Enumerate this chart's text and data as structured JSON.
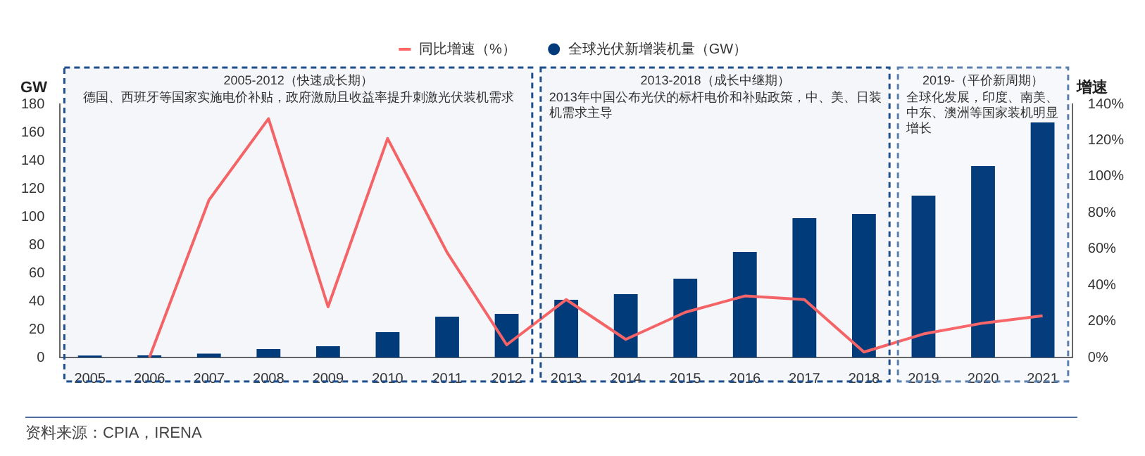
{
  "chart_data": {
    "type": "bar",
    "categories": [
      "2005",
      "2006",
      "2007",
      "2008",
      "2009",
      "2010",
      "2011",
      "2012",
      "2013",
      "2014",
      "2015",
      "2016",
      "2017",
      "2018",
      "2019",
      "2020",
      "2021"
    ],
    "series": [
      {
        "name": "全球光伏新增装机量（GW）",
        "color": "#003a7a",
        "values": [
          1.4,
          1.5,
          2.7,
          6,
          8,
          18,
          29,
          31,
          41,
          45,
          56,
          75,
          99,
          102,
          115,
          136,
          167
        ]
      },
      {
        "name": "同比增速（%）",
        "type": "line",
        "axis": "y2",
        "color": "#ff6666",
        "values": [
          null,
          0,
          87,
          132,
          28,
          121,
          58,
          7,
          32,
          10,
          25,
          34,
          32,
          3,
          13,
          19,
          23
        ]
      }
    ],
    "ylabel": "GW",
    "y2label": "增速",
    "ylim": [
      0,
      180
    ],
    "yticks": [
      0,
      20,
      40,
      60,
      80,
      100,
      120,
      140,
      160,
      180
    ],
    "y2lim": [
      0,
      140
    ],
    "y2ticks": [
      {
        "value": 0,
        "label": "0%"
      },
      {
        "value": 20,
        "label": "20%"
      },
      {
        "value": 40,
        "label": "40%"
      },
      {
        "value": 60,
        "label": "60%"
      },
      {
        "value": 80,
        "label": "80%"
      },
      {
        "value": 100,
        "label": "100%"
      },
      {
        "value": 120,
        "label": "120%"
      },
      {
        "value": 140,
        "label": "140%"
      }
    ],
    "bands": [
      {
        "axis": "x",
        "from": "2005",
        "to": "2012",
        "label": "2005-2012（快速成长期）",
        "color": "#1f4e8c"
      },
      {
        "axis": "x",
        "from": "2013",
        "to": "2018",
        "label": "2013-2018（成长中继期）",
        "color": "#1f4e8c"
      },
      {
        "axis": "x",
        "from": "2019",
        "to": "2021",
        "label": "2019-（平价新周期）",
        "color": "#5b7fae"
      }
    ],
    "annotations": [
      "德国、西班牙等国家实施电价补贴，政府激励且收益率提升刺激光伏装机需求",
      "2013年中国公布光伏的标杆电价和补贴政策，中、美、日装机需求主导",
      "全球化发展，印度、南美、中东、澳洲等国家装机明显增长",
      "资料来源：CPIA，IRENA"
    ],
    "legend": "top",
    "grid": false
  }
}
